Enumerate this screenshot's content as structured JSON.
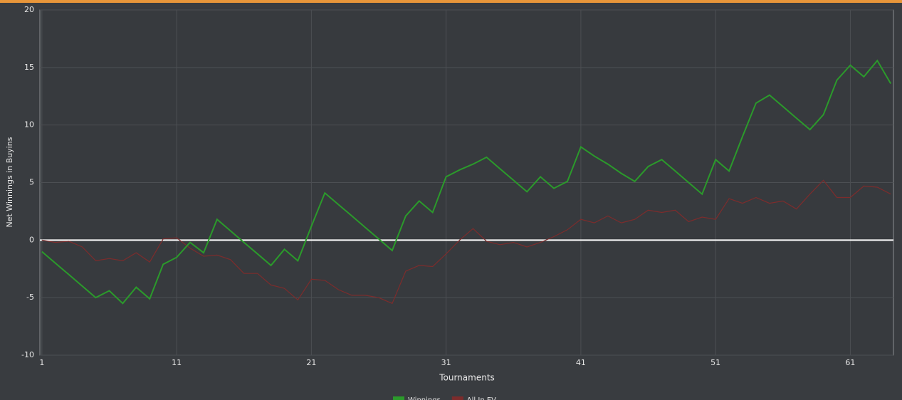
{
  "chart_data": {
    "type": "line",
    "y_label": "Net Winnings in Buyins",
    "x_label": "Tournaments",
    "x": [
      1,
      2,
      3,
      4,
      5,
      6,
      7,
      8,
      9,
      10,
      11,
      12,
      13,
      14,
      15,
      16,
      17,
      18,
      19,
      20,
      21,
      22,
      23,
      24,
      25,
      26,
      27,
      28,
      29,
      30,
      31,
      32,
      33,
      34,
      35,
      36,
      37,
      38,
      39,
      40,
      41,
      42,
      43,
      44,
      45,
      46,
      47,
      48,
      49,
      50,
      51,
      52,
      53,
      54,
      55,
      56,
      57,
      58,
      59,
      60,
      61,
      62,
      63,
      64
    ],
    "series": [
      {
        "name": "Winnings",
        "color": "#2b9a2b",
        "values": [
          -1.0,
          -2.0,
          -3.0,
          -4.0,
          -5.0,
          -4.4,
          -5.5,
          -4.1,
          -5.1,
          -2.1,
          -1.5,
          -0.2,
          -1.1,
          1.8,
          0.8,
          -0.2,
          -1.2,
          -2.2,
          -0.8,
          -1.8,
          1.2,
          4.1,
          3.1,
          2.1,
          1.1,
          0.1,
          -0.9,
          2.1,
          3.4,
          2.4,
          5.5,
          6.1,
          6.6,
          7.2,
          6.2,
          5.2,
          4.2,
          5.5,
          4.5,
          5.1,
          8.1,
          7.3,
          6.6,
          5.8,
          5.1,
          6.4,
          7.0,
          6.0,
          5.0,
          4.0,
          7.0,
          6.0,
          9.0,
          11.9,
          12.6,
          11.6,
          10.6,
          9.6,
          10.9,
          13.9,
          15.2,
          14.2,
          15.6,
          13.6
        ]
      },
      {
        "name": "All In EV",
        "color": "#7d2c2c",
        "values": [
          0,
          -0.2,
          -0.1,
          -0.6,
          -1.8,
          -1.6,
          -1.8,
          -1.1,
          -1.9,
          0.1,
          0.2,
          -0.7,
          -1.4,
          -1.3,
          -1.7,
          -2.9,
          -2.9,
          -3.9,
          -4.2,
          -5.2,
          -3.4,
          -3.5,
          -4.3,
          -4.8,
          -4.8,
          -5.0,
          -5.5,
          -2.7,
          -2.2,
          -2.3,
          -1.2,
          0,
          1.0,
          -0.1,
          -0.4,
          -0.2,
          -0.6,
          -0.2,
          0.3,
          0.9,
          1.8,
          1.5,
          2.1,
          1.5,
          1.8,
          2.6,
          2.4,
          2.6,
          1.6,
          2.0,
          1.8,
          3.6,
          3.2,
          3.7,
          3.2,
          3.4,
          2.7,
          4.0,
          5.2,
          3.7,
          3.7,
          4.7,
          4.6,
          4.0
        ]
      }
    ],
    "xlim": [
      0.85,
      64.2
    ],
    "ylim": [
      -10,
      20
    ],
    "xticks": [
      1,
      11,
      21,
      31,
      41,
      51,
      61
    ],
    "yticks": [
      -10,
      -5,
      0,
      5,
      10,
      15,
      20
    ],
    "grid": true,
    "legend": "bottom"
  }
}
